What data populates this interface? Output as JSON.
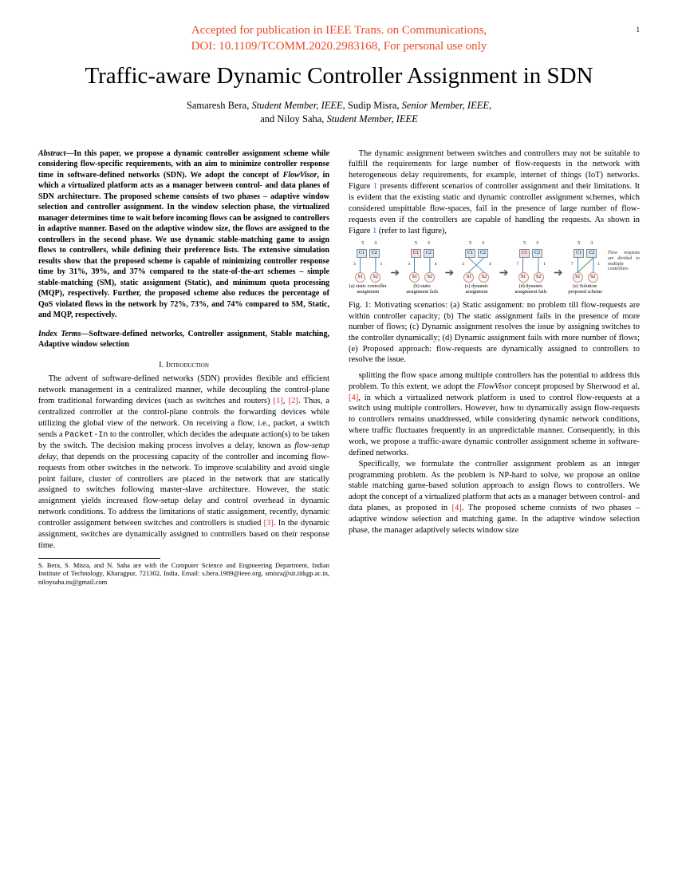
{
  "page_number": "1",
  "banner": {
    "line1": "Accepted for publication in IEEE Trans. on Communications,",
    "line2": "DOI: 10.1109/TCOMM.2020.2983168, For personal use only",
    "color": "#e8492a"
  },
  "title": "Traffic-aware Dynamic Controller Assignment in SDN",
  "authors": {
    "a1_name": "Samaresh Bera,",
    "a1_role": "Student Member, IEEE,",
    "a2_name": "Sudip Misra,",
    "a2_role": "Senior Member, IEEE,",
    "and": "and",
    "a3_name": "Niloy Saha,",
    "a3_role": "Student Member, IEEE"
  },
  "abstract": {
    "label": "Abstract",
    "text1": "—In this paper, we propose a dynamic controller assignment scheme while considering flow-specific requirements, with an aim to minimize controller response time in software-defined networks (SDN). We adopt the concept of ",
    "flowvisor": "FlowVisor",
    "text2": ", in which a virtualized platform acts as a manager between control- and data planes of SDN architecture. The proposed scheme consists of two phases – adaptive window selection and controller assignment. In the window selection phase, the virtualized manager determines time to wait before incoming flows can be assigned to controllers in adaptive manner. Based on the adaptive window size, the flows are assigned to the controllers in the second phase. We use dynamic stable-matching game to assign flows to controllers, while defining their preference lists. The extensive simulation results show that the proposed scheme is capable of minimizing controller response time by 31%, 39%, and 37% compared to the state-of-the-art schemes – simple stable-matching (SM), static assignment (Static), and minimum quota processing (MQP), respectively. Further, the proposed scheme also reduces the percentage of QoS violated flows in the network by 72%, 73%, and 74% compared to SM, Static, and MQP, respectively."
  },
  "index_terms": {
    "label": "Index Terms",
    "text": "—Software-defined networks, Controller assignment, Stable matching, Adaptive window selection"
  },
  "section1_head": "I.  Introduction",
  "intro_p1a": "The advent of software-defined networks (SDN) provides flexible and efficient network management in a centralized manner, while decoupling the control-plane from traditional forwarding devices (such as switches and routers) ",
  "intro_ref1": "[1]",
  "intro_comma": ", ",
  "intro_ref2": "[2]",
  "intro_p1b": ". Thus, a centralized controller at the control-plane controls the forwarding devices while utilizing the global view of the network. On receiving a flow, i.e., packet, a switch sends a ",
  "packetin": "Packet-In",
  "intro_p1c": " to the controller, which decides the adequate action(s) to be taken by the switch. The decision making process involves a delay, known as ",
  "flowsetup": "flow-setup delay",
  "intro_p1d": ", that depends on the processing capacity of the controller and incoming flow-requests from other switches in the network. To improve scalability and avoid single point failure, cluster of controllers are placed in the network that are statically assigned to switches following master-slave architecture. However, the static assignment yields increased flow-setup delay and control overhead in dynamic network conditions. To address the limitations of static assignment, recently, dynamic controller assignment between switches and controllers is studied ",
  "intro_ref3": "[3]",
  "intro_p1e": ". In the dynamic assignment, switches are dynamically assigned to controllers based on their response time.",
  "footnote": "S. Bera, S. Misra, and N. Saha are with the Computer Science and Engineering Department, Indian Institute of Technology, Kharagpur, 721302, India, Email: s.bera.1989@ieee.org, smisra@sit.iitkgp.ac.in, niloysaha.ns@gmail.com",
  "col2_p1a": "The dynamic assignment between switches and controllers may not be suitable to fulfill the requirements for large number of flow-requests in the network with heterogeneous delay requirements, for example, internet of things (IoT) networks. Figure ",
  "fig1ref_a": "1",
  "col2_p1b": " presents different scenarios of controller assignment and their limitations. It is evident that the existing static and dynamic controller assignment schemes, which considered unspittable flow-spaces, fail in the presence of large number of flow-requests even if the controllers are capable of handling the requests. As shown in Figure ",
  "fig1ref_b": "1",
  "col2_p1c": " (refer to last figure),",
  "figure": {
    "capacity_label": "capacity",
    "scenarios": [
      {
        "caps": [
          "5",
          "3"
        ],
        "ctrls": [
          "C1",
          "C2"
        ],
        "ctrl_bg": [
          "#d6e9f8",
          "#d6e9f8"
        ],
        "sws": [
          "S1",
          "S2"
        ],
        "flows": [
          3,
          1
        ],
        "sub": "(a) static controller assignment",
        "flowlabel": "Flow request to controller"
      },
      {
        "caps": [
          "5",
          "3"
        ],
        "ctrls": [
          "C1",
          "C2"
        ],
        "ctrl_bg": [
          "#f7dcdc",
          "#d6e9f8"
        ],
        "sws": [
          "S1",
          "S2"
        ],
        "flows": [
          3,
          4
        ],
        "sub": "(b) static assignment fails"
      },
      {
        "caps": [
          "5",
          "3"
        ],
        "ctrls": [
          "C1",
          "C2"
        ],
        "ctrl_bg": [
          "#d6e9f8",
          "#d6e9f8"
        ],
        "sws": [
          "S1",
          "S2"
        ],
        "flows": [
          3,
          4
        ],
        "sub": "(c) dynamic assignment",
        "cross": true
      },
      {
        "caps": [
          "5",
          "3"
        ],
        "ctrls": [
          "C1",
          "C2"
        ],
        "ctrl_bg": [
          "#f7dcdc",
          "#d6e9f8"
        ],
        "sws": [
          "S1",
          "S2"
        ],
        "flows": [
          7,
          1
        ],
        "sub": "(d) dynamic assignment fails"
      },
      {
        "caps": [
          "5",
          "3"
        ],
        "ctrls": [
          "C1",
          "C2"
        ],
        "ctrl_bg": [
          "#d6e9f8",
          "#d6e9f8"
        ],
        "sws": [
          "S1",
          "S2"
        ],
        "flows": [
          7,
          1
        ],
        "sub": "(e) Solution: proposed scheme",
        "multi": true
      }
    ],
    "sidenote": "Flow requests are divided to multiple controllers",
    "caption": "Fig. 1: Motivating scenarios: (a) Static assignment: no problem till flow-requests are within controller capacity; (b) The static assignment fails in the presence of more number of flows; (c) Dynamic assignment resolves the issue by assigning switches to the controller dynamically; (d) Dynamic assignment fails with more number of flows; (e) Proposed approach: flow-requests are dynamically assigned to controllers to resolve the issue."
  },
  "col2_p2a": "splitting the flow space among multiple controllers has the potential to address this problem. To this extent, we adopt the ",
  "col2_flowvisor": "FlowVisor",
  "col2_p2b": " concept proposed by Sherwood et al. ",
  "col2_ref4": "[4]",
  "col2_p2c": ", in which a virtualized network platform is used to control flow-requests at a switch using multiple controllers. However, how to dynamically assign flow-requests to controllers remains unaddressed, while considering dynamic network conditions, where traffic fluctuates frequently in an unpredictable manner. Consequently, in this work, we propose a traffic-aware dynamic controller assignment scheme in software-defined networks.",
  "col2_p3a": "Specifically, we formulate the controller assignment problem as an integer programming problem. As the problem is NP-hard to solve, we propose an online stable matching game-based solution approach to assign flows to controllers. We adopt the concept of a virtualized platform that acts as a manager between control- and data planes, as proposed in ",
  "col2_ref4b": "[4]",
  "col2_p3b": ". The proposed scheme consists of two phases – adaptive window selection and matching game. In the adaptive window selection phase, the manager adaptively selects window size"
}
